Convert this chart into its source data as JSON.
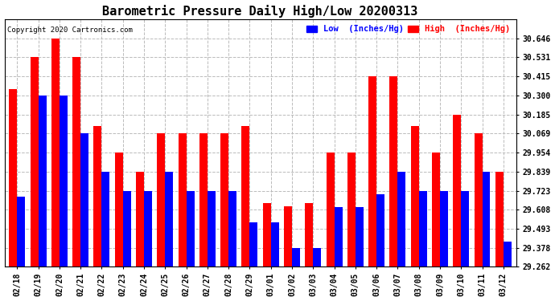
{
  "title": "Barometric Pressure Daily High/Low 20200313",
  "copyright": "Copyright 2020 Cartronics.com",
  "legend_low": "Low  (Inches/Hg)",
  "legend_high": "High  (Inches/Hg)",
  "dates": [
    "02/18",
    "02/19",
    "02/20",
    "02/21",
    "02/22",
    "02/23",
    "02/24",
    "02/25",
    "02/26",
    "02/27",
    "02/28",
    "02/29",
    "03/01",
    "03/02",
    "03/03",
    "03/04",
    "03/05",
    "03/06",
    "03/07",
    "03/08",
    "03/09",
    "03/10",
    "03/11",
    "03/12"
  ],
  "high_values": [
    30.34,
    30.531,
    30.646,
    30.531,
    30.115,
    29.954,
    29.839,
    30.069,
    30.069,
    30.069,
    30.069,
    30.115,
    29.65,
    29.63,
    29.65,
    29.954,
    29.954,
    30.415,
    30.415,
    30.115,
    29.954,
    30.185,
    30.069,
    29.839
  ],
  "low_values": [
    29.685,
    30.3,
    30.3,
    30.069,
    29.839,
    29.723,
    29.723,
    29.839,
    29.723,
    29.723,
    29.723,
    29.53,
    29.53,
    29.378,
    29.378,
    29.623,
    29.623,
    29.7,
    29.839,
    29.723,
    29.723,
    29.723,
    29.839,
    29.416
  ],
  "bar_width": 0.38,
  "ymin": 29.262,
  "ymax": 30.761,
  "yticks": [
    29.262,
    29.378,
    29.493,
    29.608,
    29.723,
    29.839,
    29.954,
    30.069,
    30.185,
    30.3,
    30.415,
    30.531,
    30.646
  ],
  "high_color": "#ff0000",
  "low_color": "#0000ff",
  "bg_color": "#ffffff",
  "grid_color": "#bbbbbb",
  "title_fontsize": 11,
  "tick_fontsize": 7
}
